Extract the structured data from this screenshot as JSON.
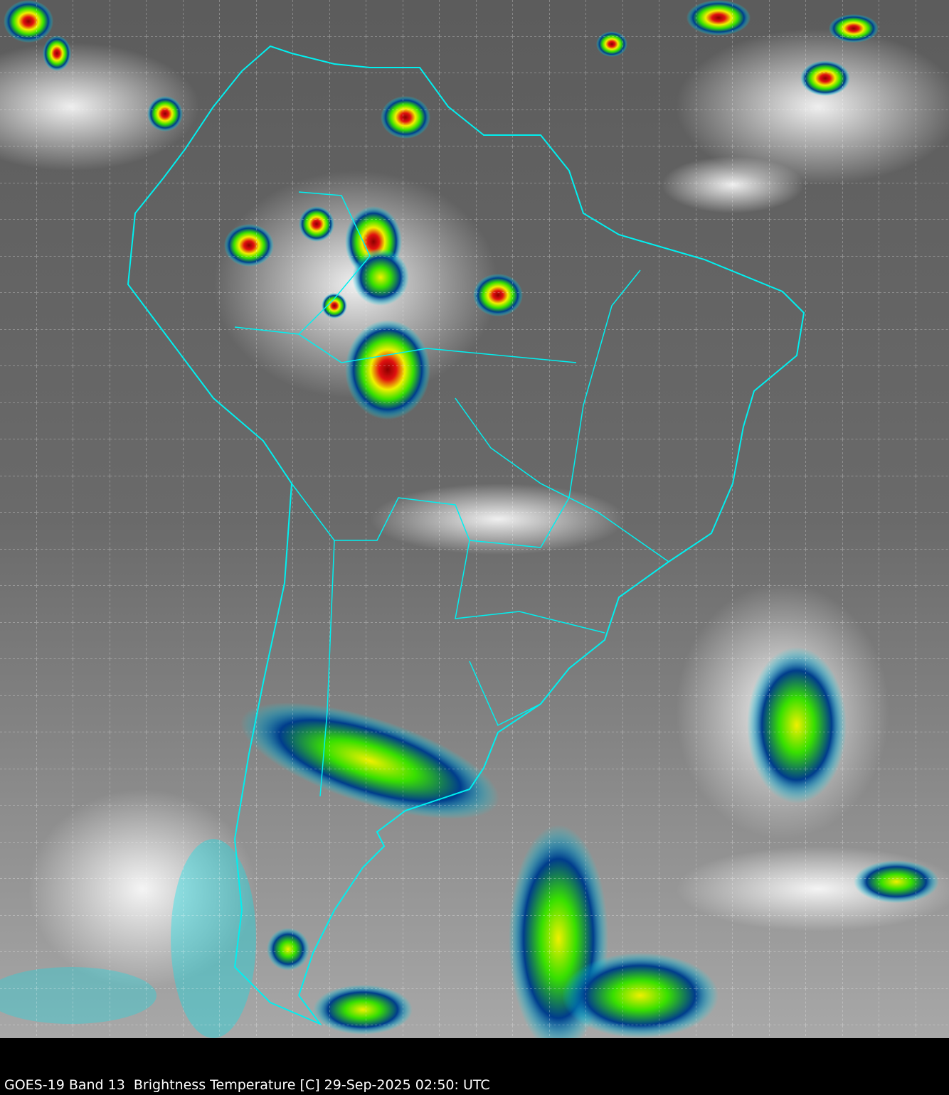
{
  "caption": "GOES-19 Band 13  Brightness Temperature [C] 29-Sep-2025 02:50: UTC",
  "map": {
    "type": "satellite infrared brightness temperature image",
    "borders_color": "#00f0f0",
    "grid_color": "#ffffff",
    "grid_style": "dashed",
    "colors": {
      "cold_cloud_cyan": "#00e5ee",
      "blue": "#003c8c",
      "green": "#38e000",
      "yellow": "#f0f000",
      "red": "#e01010",
      "background_gray": "#6e6e6e"
    }
  }
}
